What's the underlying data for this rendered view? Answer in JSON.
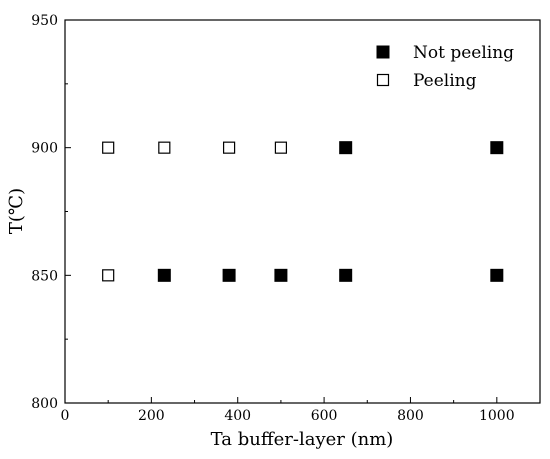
{
  "chart_data": {
    "type": "scatter",
    "title": "",
    "xlabel": "Ta buffer-layer (nm)",
    "ylabel": "T(℃)",
    "xlim": [
      0,
      1100
    ],
    "ylim": [
      800,
      950
    ],
    "x_ticks": [
      "0",
      "200",
      "400",
      "600",
      "800",
      "1000"
    ],
    "y_ticks": [
      "800",
      "850",
      "900",
      "950"
    ],
    "grid": false,
    "legend": "top-right",
    "series": [
      {
        "name": "Not peeling",
        "marker": "filled-square",
        "color": "#000000",
        "points": [
          {
            "x": 650,
            "y": 900
          },
          {
            "x": 1000,
            "y": 900
          },
          {
            "x": 230,
            "y": 850
          },
          {
            "x": 380,
            "y": 850
          },
          {
            "x": 500,
            "y": 850
          },
          {
            "x": 650,
            "y": 850
          },
          {
            "x": 1000,
            "y": 850
          }
        ]
      },
      {
        "name": "Peeling",
        "marker": "open-square",
        "color": "#000000",
        "points": [
          {
            "x": 100,
            "y": 900
          },
          {
            "x": 230,
            "y": 900
          },
          {
            "x": 380,
            "y": 900
          },
          {
            "x": 500,
            "y": 900
          },
          {
            "x": 100,
            "y": 850
          }
        ]
      }
    ]
  }
}
